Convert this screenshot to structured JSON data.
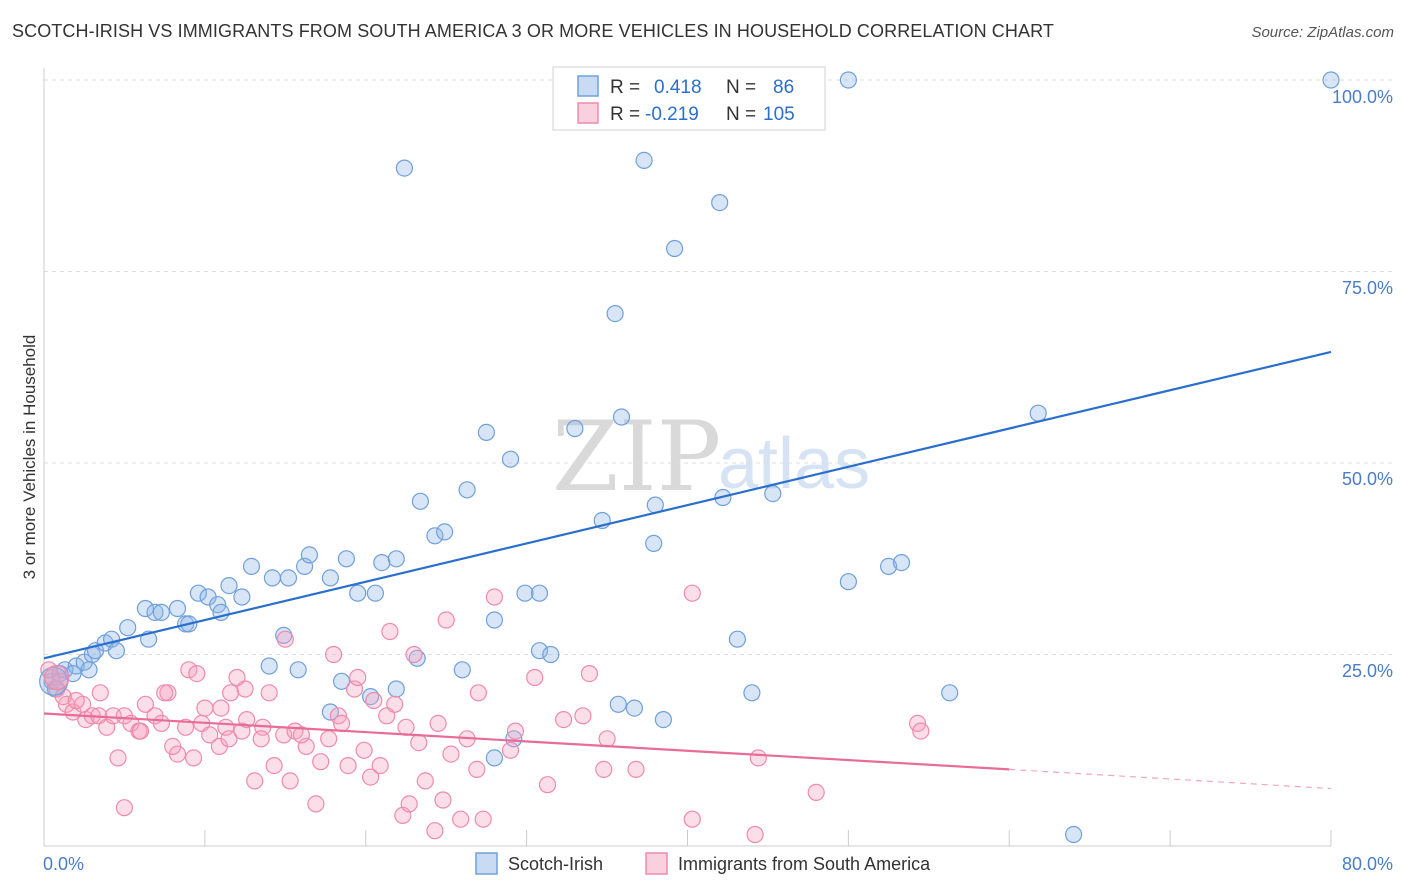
{
  "header": {
    "title": "SCOTCH-IRISH VS IMMIGRANTS FROM SOUTH AMERICA 3 OR MORE VEHICLES IN HOUSEHOLD CORRELATION CHART",
    "source": "Source: ZipAtlas.com"
  },
  "watermark": {
    "zip": "ZIP",
    "atlas": "atlas"
  },
  "legend": {
    "r_label": "R =",
    "n_label": "N =",
    "entries": [
      {
        "r": "0.418",
        "n": "86",
        "color": "#6fa0dc"
      },
      {
        "r": "-0.219",
        "n": "105",
        "color": "#f08aaa"
      }
    ]
  },
  "chart_data": {
    "type": "scatter",
    "ylabel": "3 or more Vehicles in Household",
    "xlabel": "",
    "xlim": [
      0,
      80
    ],
    "ylim": [
      0,
      100
    ],
    "x_tick_labels": [
      "0.0%",
      "80.0%"
    ],
    "y_ticks": [
      25,
      50,
      75,
      100
    ],
    "y_tick_labels": [
      "25.0%",
      "50.0%",
      "75.0%",
      "100.0%"
    ],
    "grid": "horizontal dashed",
    "legend_position": "top-center",
    "series": [
      {
        "name": "Scotch-Irish",
        "color": "#6fa0dc",
        "line_color": "#2b6fce",
        "trend": {
          "x": [
            0,
            80
          ],
          "y": [
            24.5,
            64.5
          ]
        },
        "points": [
          [
            0.5,
            21.5
          ],
          [
            1.0,
            22.5
          ],
          [
            1.3,
            23.0
          ],
          [
            2.0,
            23.5
          ],
          [
            2.5,
            24.0
          ],
          [
            3.0,
            25.0
          ],
          [
            3.2,
            25.5
          ],
          [
            3.8,
            26.5
          ],
          [
            4.2,
            27.0
          ],
          [
            5.2,
            28.5
          ],
          [
            6.3,
            31.0
          ],
          [
            6.9,
            30.5
          ],
          [
            7.3,
            30.5
          ],
          [
            8.3,
            31.0
          ],
          [
            8.8,
            29.0
          ],
          [
            9.6,
            33.0
          ],
          [
            10.2,
            32.5
          ],
          [
            10.8,
            31.5
          ],
          [
            11.5,
            34.0
          ],
          [
            12.3,
            32.5
          ],
          [
            12.9,
            36.5
          ],
          [
            14.2,
            35.0
          ],
          [
            15.2,
            35.0
          ],
          [
            16.2,
            36.5
          ],
          [
            16.5,
            38.0
          ],
          [
            17.8,
            35.0
          ],
          [
            18.8,
            37.5
          ],
          [
            19.5,
            33.0
          ],
          [
            20.6,
            33.0
          ],
          [
            21.0,
            37.0
          ],
          [
            21.9,
            37.5
          ],
          [
            14.0,
            23.5
          ],
          [
            14.9,
            27.5
          ],
          [
            15.8,
            23.0
          ],
          [
            17.8,
            17.5
          ],
          [
            18.5,
            21.5
          ],
          [
            20.3,
            19.5
          ],
          [
            21.9,
            20.5
          ],
          [
            23.2,
            24.5
          ],
          [
            23.4,
            45.0
          ],
          [
            24.3,
            40.5
          ],
          [
            24.9,
            41.0
          ],
          [
            26.0,
            23.0
          ],
          [
            26.3,
            46.5
          ],
          [
            27.5,
            54.0
          ],
          [
            28.0,
            29.5
          ],
          [
            28.0,
            11.5
          ],
          [
            29.0,
            50.5
          ],
          [
            29.2,
            14.0
          ],
          [
            29.9,
            33.0
          ],
          [
            30.8,
            33.0
          ],
          [
            30.8,
            25.5
          ],
          [
            31.5,
            25.0
          ],
          [
            33.0,
            54.5
          ],
          [
            34.7,
            42.5
          ],
          [
            35.5,
            69.5
          ],
          [
            35.7,
            18.5
          ],
          [
            35.9,
            56.0
          ],
          [
            36.7,
            18.0
          ],
          [
            37.3,
            89.5
          ],
          [
            37.9,
            39.5
          ],
          [
            38.0,
            44.5
          ],
          [
            38.5,
            16.5
          ],
          [
            39.2,
            78.0
          ],
          [
            42.0,
            84.0
          ],
          [
            42.2,
            45.5
          ],
          [
            43.1,
            27.0
          ],
          [
            44.0,
            20.0
          ],
          [
            45.3,
            46.0
          ],
          [
            22.4,
            88.5
          ],
          [
            50.0,
            34.5
          ],
          [
            52.5,
            36.5
          ],
          [
            53.3,
            37.0
          ],
          [
            56.3,
            20.0
          ],
          [
            61.8,
            56.5
          ],
          [
            64.0,
            1.5
          ],
          [
            80.0,
            100.0
          ],
          [
            50.0,
            100.0
          ],
          [
            37.5,
            100.0
          ],
          [
            0.7,
            20.5
          ],
          [
            1.8,
            22.5
          ],
          [
            4.5,
            25.5
          ],
          [
            6.5,
            27.0
          ],
          [
            2.8,
            23.0
          ],
          [
            9.0,
            29.0
          ],
          [
            11.0,
            30.5
          ]
        ]
      },
      {
        "name": "Immigrants from South America",
        "color": "#f08aaa",
        "line_color": "#e86b98",
        "trend": {
          "x": [
            0,
            60
          ],
          "y": [
            17.3,
            10.0
          ]
        },
        "trend_dashed_to": {
          "x": 80,
          "y": 7.5
        },
        "points": [
          [
            0.5,
            22.0
          ],
          [
            1.0,
            21.5
          ],
          [
            1.4,
            18.5
          ],
          [
            1.8,
            17.5
          ],
          [
            2.4,
            18.5
          ],
          [
            2.6,
            16.5
          ],
          [
            3.0,
            17.0
          ],
          [
            3.4,
            17.0
          ],
          [
            3.9,
            15.5
          ],
          [
            4.3,
            17.0
          ],
          [
            4.6,
            11.5
          ],
          [
            5.0,
            17.0
          ],
          [
            5.4,
            16.0
          ],
          [
            5.9,
            15.0
          ],
          [
            6.3,
            18.5
          ],
          [
            6.9,
            17.0
          ],
          [
            7.3,
            16.0
          ],
          [
            7.7,
            20.0
          ],
          [
            8.3,
            12.0
          ],
          [
            8.8,
            15.5
          ],
          [
            9.3,
            11.5
          ],
          [
            9.8,
            16.0
          ],
          [
            10.3,
            14.5
          ],
          [
            10.9,
            13.0
          ],
          [
            11.3,
            15.5
          ],
          [
            11.6,
            20.0
          ],
          [
            12.3,
            15.0
          ],
          [
            12.6,
            16.5
          ],
          [
            13.1,
            8.5
          ],
          [
            13.6,
            15.5
          ],
          [
            14.3,
            10.5
          ],
          [
            14.9,
            14.5
          ],
          [
            15.3,
            8.5
          ],
          [
            15.6,
            15.0
          ],
          [
            16.3,
            13.0
          ],
          [
            16.9,
            5.5
          ],
          [
            17.2,
            11.0
          ],
          [
            17.7,
            14.0
          ],
          [
            18.3,
            17.0
          ],
          [
            18.9,
            10.5
          ],
          [
            19.3,
            20.5
          ],
          [
            19.9,
            12.5
          ],
          [
            20.3,
            9.0
          ],
          [
            20.9,
            10.5
          ],
          [
            21.3,
            17.0
          ],
          [
            21.8,
            18.5
          ],
          [
            22.3,
            4.0
          ],
          [
            22.7,
            5.5
          ],
          [
            23.3,
            13.5
          ],
          [
            23.7,
            8.5
          ],
          [
            24.3,
            2.0
          ],
          [
            24.8,
            6.0
          ],
          [
            25.3,
            12.0
          ],
          [
            25.9,
            3.5
          ],
          [
            26.3,
            14.0
          ],
          [
            26.9,
            10.0
          ],
          [
            27.3,
            3.5
          ],
          [
            28.0,
            32.5
          ],
          [
            29.3,
            15.0
          ],
          [
            31.3,
            8.0
          ],
          [
            32.3,
            16.5
          ],
          [
            33.9,
            22.5
          ],
          [
            34.8,
            10.0
          ],
          [
            36.8,
            10.0
          ],
          [
            40.3,
            33.0
          ],
          [
            40.3,
            3.5
          ],
          [
            44.2,
            1.5
          ],
          [
            44.4,
            11.5
          ],
          [
            48.0,
            7.0
          ],
          [
            54.3,
            16.0
          ],
          [
            54.5,
            15.0
          ],
          [
            9.0,
            23.0
          ],
          [
            10.0,
            18.0
          ],
          [
            12.5,
            20.5
          ],
          [
            15.0,
            27.0
          ],
          [
            18.0,
            25.0
          ],
          [
            19.5,
            22.0
          ],
          [
            21.5,
            28.0
          ],
          [
            23.0,
            25.0
          ],
          [
            25.0,
            29.5
          ],
          [
            27.0,
            20.0
          ],
          [
            29.0,
            12.5
          ],
          [
            30.5,
            22.0
          ],
          [
            33.5,
            17.0
          ],
          [
            35.0,
            14.0
          ],
          [
            3.5,
            20.0
          ],
          [
            5.0,
            5.0
          ],
          [
            7.5,
            20.0
          ],
          [
            9.5,
            22.5
          ],
          [
            11.0,
            18.0
          ],
          [
            12.0,
            22.0
          ],
          [
            14.0,
            20.0
          ],
          [
            16.0,
            14.5
          ],
          [
            18.5,
            16.0
          ],
          [
            20.5,
            19.0
          ],
          [
            22.5,
            15.5
          ],
          [
            24.5,
            16.0
          ],
          [
            0.8,
            20.5
          ],
          [
            1.2,
            19.5
          ],
          [
            2.0,
            19.0
          ],
          [
            6.0,
            15.0
          ],
          [
            8.0,
            13.0
          ],
          [
            11.5,
            14.0
          ],
          [
            13.5,
            14.0
          ],
          [
            0.3,
            23.0
          ]
        ]
      }
    ]
  }
}
